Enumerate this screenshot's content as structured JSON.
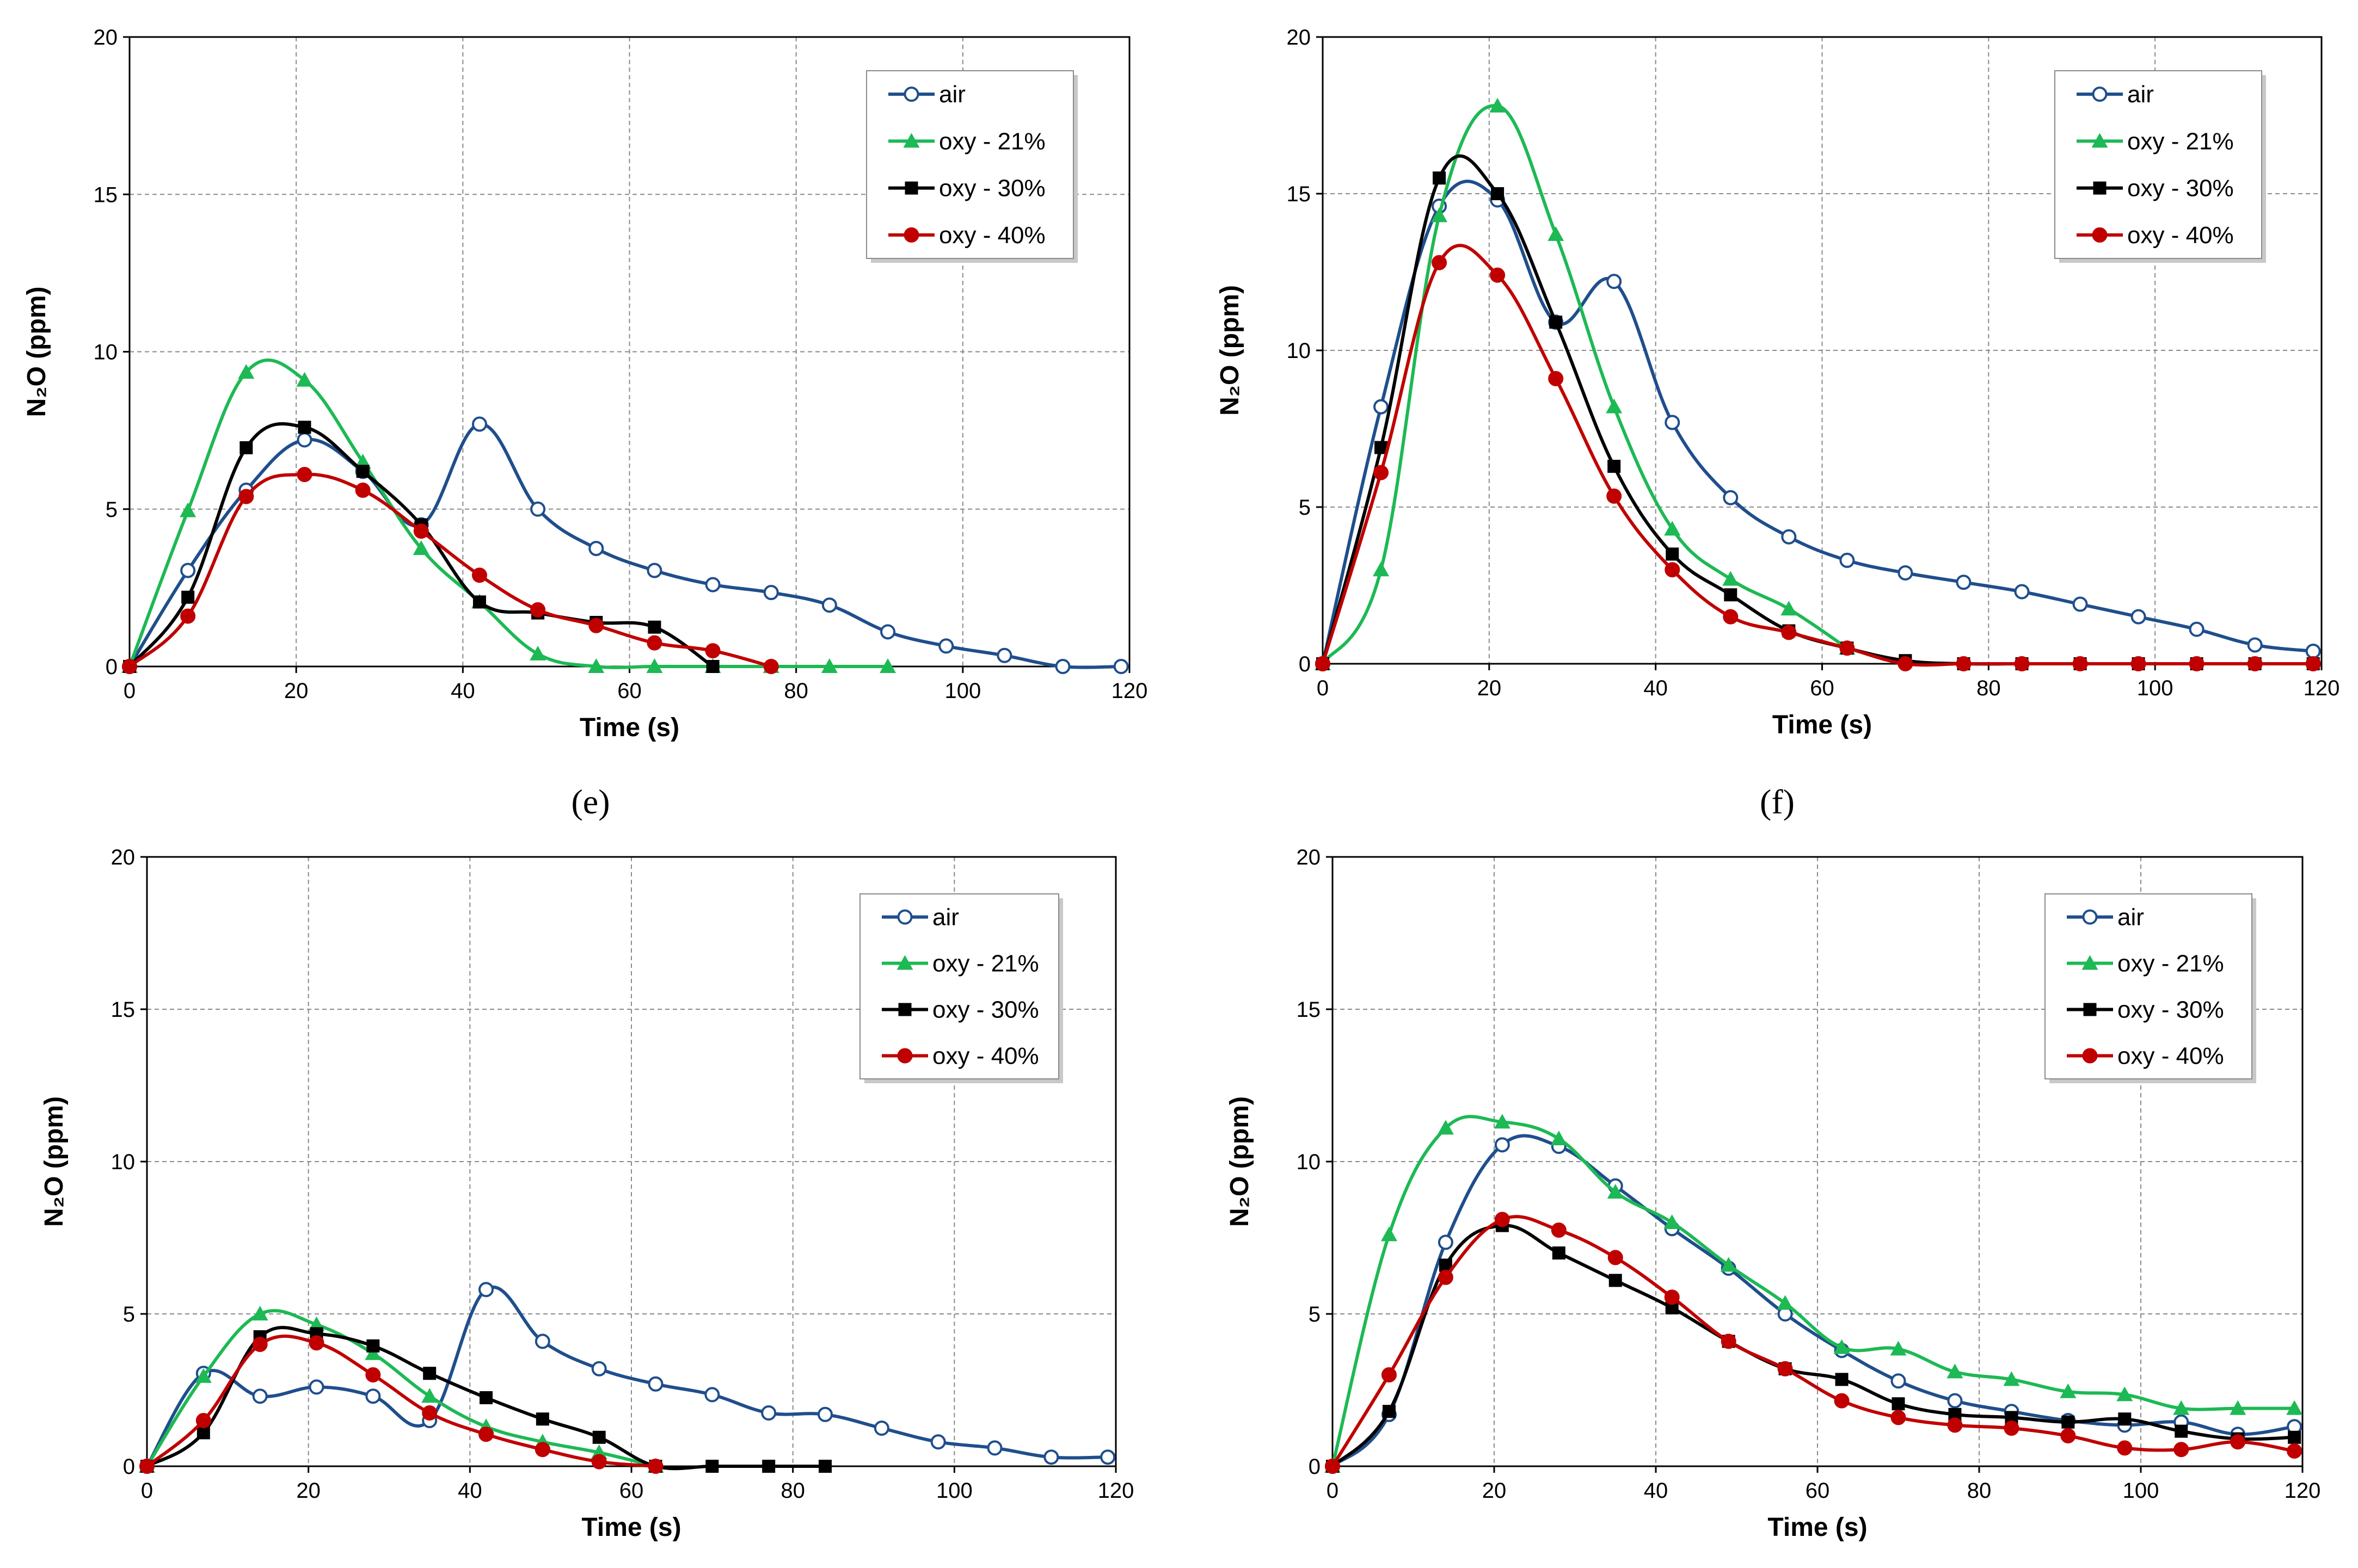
{
  "series_styles": {
    "air": {
      "color": "#1f4e8c",
      "marker": "circle-open"
    },
    "oxy21": {
      "color": "#1db954",
      "marker": "triangle"
    },
    "oxy30": {
      "color": "#000000",
      "marker": "square"
    },
    "oxy40": {
      "color": "#c00000",
      "marker": "circle"
    }
  },
  "panel_labels": [
    "(e)",
    "(f)"
  ],
  "chart_data": [
    {
      "type": "line",
      "xlabel": "Time (s)",
      "ylabel": "N₂O (ppm)",
      "xticks": [
        "0",
        "20",
        "40",
        "60",
        "80",
        "100",
        "120"
      ],
      "yticks": [
        "0",
        "5",
        "10",
        "15",
        "20"
      ],
      "xlim": [
        0,
        120
      ],
      "ylim": [
        0,
        20
      ],
      "grid": true,
      "legend_position": "top-right",
      "series": [
        {
          "key": "air",
          "name": "air",
          "x": [
            0,
            7,
            14,
            21,
            28,
            35,
            42,
            49,
            56,
            63,
            70,
            77,
            84,
            91,
            98,
            105,
            112,
            119
          ],
          "y": [
            0,
            3.05,
            5.6,
            7.2,
            6.2,
            4.5,
            7.7,
            5,
            3.75,
            3.05,
            2.6,
            2.35,
            1.95,
            1.1,
            0.65,
            0.35,
            0,
            0
          ]
        },
        {
          "key": "oxy21",
          "name": "oxy - 21%",
          "x": [
            0,
            7,
            14,
            21,
            28,
            35,
            42,
            49,
            56,
            63,
            70,
            77,
            84,
            91
          ],
          "y": [
            0,
            4.95,
            9.35,
            9.1,
            6.5,
            3.75,
            2.05,
            0.4,
            0,
            0,
            0,
            0,
            0,
            0
          ]
        },
        {
          "key": "oxy30",
          "name": "oxy - 30%",
          "x": [
            0,
            7,
            14,
            21,
            28,
            35,
            42,
            49,
            56,
            63,
            70
          ],
          "y": [
            0,
            2.2,
            6.95,
            7.6,
            6.2,
            4.5,
            2.05,
            1.7,
            1.4,
            1.25,
            0
          ]
        },
        {
          "key": "oxy40",
          "name": "oxy - 40%",
          "x": [
            0,
            7,
            14,
            21,
            28,
            35,
            42,
            49,
            56,
            63,
            70,
            77
          ],
          "y": [
            0,
            1.6,
            5.4,
            6.1,
            5.6,
            4.3,
            2.9,
            1.8,
            1.3,
            0.75,
            0.5,
            0
          ]
        }
      ]
    },
    {
      "type": "line",
      "xlabel": "Time (s)",
      "ylabel": "N₂O (ppm)",
      "xticks": [
        "0",
        "20",
        "40",
        "60",
        "80",
        "100",
        "120"
      ],
      "yticks": [
        "0",
        "5",
        "10",
        "15",
        "20"
      ],
      "xlim": [
        0,
        120
      ],
      "ylim": [
        0,
        20
      ],
      "grid": true,
      "legend_position": "top-right",
      "series": [
        {
          "key": "air",
          "name": "air",
          "x": [
            0,
            7,
            14,
            21,
            28,
            35,
            42,
            49,
            56,
            63,
            70,
            77,
            84,
            91,
            98,
            105,
            112,
            119
          ],
          "y": [
            0,
            8.2,
            14.6,
            14.8,
            10.9,
            12.2,
            7.7,
            5.3,
            4.05,
            3.3,
            2.9,
            2.6,
            2.3,
            1.9,
            1.5,
            1.1,
            0.6,
            0.4
          ]
        },
        {
          "key": "oxy21",
          "name": "oxy - 21%",
          "x": [
            0,
            7,
            14,
            21,
            28,
            35,
            42,
            49,
            56,
            63
          ],
          "y": [
            0,
            3,
            14.3,
            17.8,
            13.7,
            8.2,
            4.3,
            2.7,
            1.75,
            0.5
          ]
        },
        {
          "key": "oxy30",
          "name": "oxy - 30%",
          "x": [
            0,
            7,
            14,
            21,
            28,
            35,
            42,
            49,
            56,
            63,
            70,
            77,
            84,
            91,
            98,
            105,
            112,
            119
          ],
          "y": [
            0,
            6.9,
            15.5,
            15,
            10.9,
            6.3,
            3.5,
            2.2,
            1.05,
            0.5,
            0.1,
            0,
            0,
            0,
            0,
            0,
            0,
            0
          ]
        },
        {
          "key": "oxy40",
          "name": "oxy - 40%",
          "x": [
            0,
            7,
            14,
            21,
            28,
            35,
            42,
            49,
            56,
            63,
            70,
            77,
            84,
            91,
            98,
            105,
            112,
            119
          ],
          "y": [
            0,
            6.1,
            12.8,
            12.4,
            9.1,
            5.35,
            3,
            1.5,
            1,
            0.5,
            0,
            0,
            0,
            0,
            0,
            0,
            0,
            0
          ]
        }
      ]
    },
    {
      "type": "line",
      "xlabel": "Time (s)",
      "ylabel": "N₂O (ppm)",
      "xticks": [
        "0",
        "20",
        "40",
        "60",
        "80",
        "100",
        "120"
      ],
      "yticks": [
        "0",
        "5",
        "10",
        "15",
        "20"
      ],
      "xlim": [
        0,
        120
      ],
      "ylim": [
        0,
        20
      ],
      "grid": true,
      "legend_position": "top-right",
      "series": [
        {
          "key": "air",
          "name": "air",
          "x": [
            0,
            7,
            14,
            21,
            28,
            35,
            42,
            49,
            56,
            63,
            70,
            77,
            84,
            91,
            98,
            105,
            112,
            119
          ],
          "y": [
            0,
            3.05,
            2.3,
            2.6,
            2.3,
            1.5,
            5.8,
            4.1,
            3.2,
            2.7,
            2.35,
            1.75,
            1.7,
            1.25,
            0.8,
            0.6,
            0.3,
            0.3
          ]
        },
        {
          "key": "oxy21",
          "name": "oxy - 21%",
          "x": [
            0,
            7,
            14,
            21,
            28,
            35,
            42,
            49,
            56,
            63
          ],
          "y": [
            0,
            2.95,
            5,
            4.65,
            3.7,
            2.3,
            1.3,
            0.8,
            0.45,
            0
          ]
        },
        {
          "key": "oxy30",
          "name": "oxy - 30%",
          "x": [
            0,
            7,
            14,
            21,
            28,
            35,
            42,
            49,
            56,
            63,
            70,
            77,
            84
          ],
          "y": [
            0,
            1.1,
            4.25,
            4.35,
            3.95,
            3.05,
            2.25,
            1.55,
            0.95,
            0,
            0,
            0,
            0
          ]
        },
        {
          "key": "oxy40",
          "name": "oxy - 40%",
          "x": [
            0,
            7,
            14,
            21,
            28,
            35,
            42,
            49,
            56,
            63
          ],
          "y": [
            0,
            1.5,
            4,
            4.05,
            3,
            1.75,
            1.05,
            0.55,
            0.15,
            0
          ]
        }
      ]
    },
    {
      "type": "line",
      "xlabel": "Time (s)",
      "ylabel": "N₂O (ppm)",
      "xticks": [
        "0",
        "20",
        "40",
        "60",
        "80",
        "100",
        "120"
      ],
      "yticks": [
        "0",
        "5",
        "10",
        "15",
        "20"
      ],
      "xlim": [
        0,
        120
      ],
      "ylim": [
        0,
        20
      ],
      "grid": true,
      "legend_position": "top-right",
      "series": [
        {
          "key": "air",
          "name": "air",
          "x": [
            0,
            7,
            14,
            21,
            28,
            35,
            42,
            49,
            56,
            63,
            70,
            77,
            84,
            91,
            98,
            105,
            112,
            119
          ],
          "y": [
            0,
            1.7,
            7.35,
            10.55,
            10.5,
            9.2,
            7.8,
            6.5,
            5,
            3.8,
            2.8,
            2.15,
            1.8,
            1.5,
            1.35,
            1.45,
            1.05,
            1.3
          ]
        },
        {
          "key": "oxy21",
          "name": "oxy - 21%",
          "x": [
            0,
            7,
            14,
            21,
            28,
            35,
            42,
            49,
            56,
            63,
            70,
            77,
            84,
            91,
            98,
            105,
            112,
            119
          ],
          "y": [
            0,
            7.6,
            11.1,
            11.3,
            10.75,
            9,
            8,
            6.6,
            5.35,
            3.9,
            3.85,
            3.1,
            2.85,
            2.45,
            2.35,
            1.9,
            1.9,
            1.9
          ]
        },
        {
          "key": "oxy30",
          "name": "oxy - 30%",
          "x": [
            0,
            7,
            14,
            21,
            28,
            35,
            42,
            49,
            56,
            63,
            70,
            77,
            84,
            91,
            98,
            105,
            112,
            119
          ],
          "y": [
            0,
            1.8,
            6.6,
            7.9,
            7,
            6.1,
            5.2,
            4.1,
            3.2,
            2.85,
            2.05,
            1.7,
            1.6,
            1.45,
            1.55,
            1.15,
            0.9,
            0.95
          ]
        },
        {
          "key": "oxy40",
          "name": "oxy - 40%",
          "x": [
            0,
            7,
            14,
            21,
            28,
            35,
            42,
            49,
            56,
            63,
            70,
            77,
            84,
            91,
            98,
            105,
            112,
            119
          ],
          "y": [
            0,
            3,
            6.2,
            8.1,
            7.75,
            6.85,
            5.55,
            4.1,
            3.2,
            2.15,
            1.6,
            1.35,
            1.25,
            1,
            0.6,
            0.55,
            0.8,
            0.5
          ]
        }
      ]
    }
  ]
}
